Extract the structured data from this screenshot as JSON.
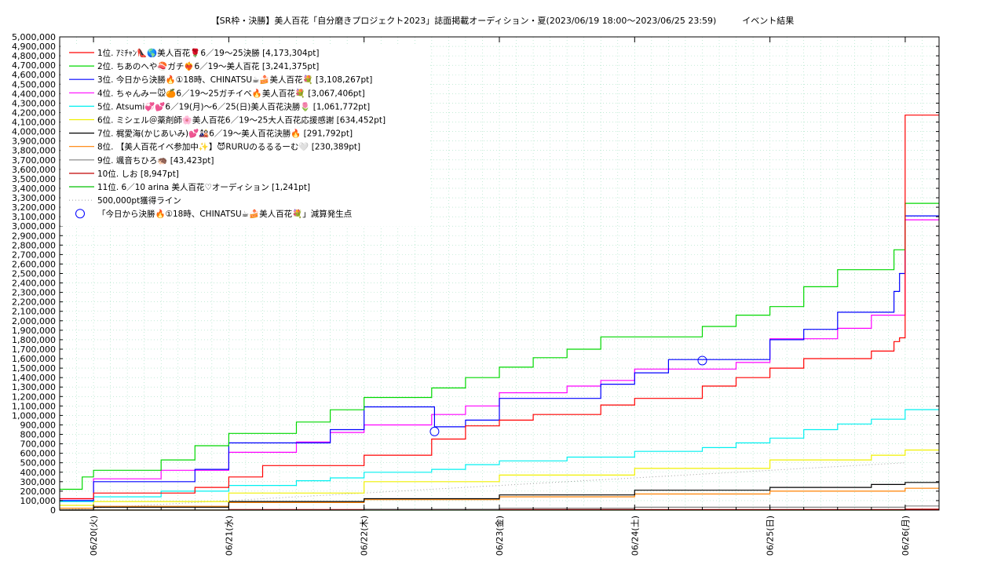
{
  "chart_data": {
    "type": "line",
    "title": "【SR枠・決勝】美人百花「自分磨きプロジェクト2023」誌面掲載オーディション・夏(2023/06/19 18:00～2023/06/25 23:59)　　　イベント結果",
    "xlabel": "",
    "ylabel": "",
    "ylim": [
      0,
      5000000
    ],
    "y_tick_step": 100000,
    "x_start": "2023-06-19 18:00",
    "x_end": "2023-06-26 06:00",
    "x_tick_labels": [
      "06/20(火)",
      "06/21(水)",
      "06/22(木)",
      "06/23(金)",
      "06/24(土)",
      "06/25(日)",
      "06/26(月)"
    ],
    "x_tick_dates": [
      "2023-06-20 00:00",
      "2023-06-21 00:00",
      "2023-06-22 00:00",
      "2023-06-23 00:00",
      "2023-06-24 00:00",
      "2023-06-25 00:00",
      "2023-06-26 00:00"
    ],
    "grid": true,
    "legend_position": "top-left",
    "series": [
      {
        "name": "1位. ｱﾐﾁｬﾝ👠🌎美人百花🌹6／19〜25決勝 [4,173,304pt]",
        "color": "#ff0000",
        "final": 4173304,
        "points": [
          [
            "2023-06-19 18:00",
            120000
          ],
          [
            "2023-06-20 00:00",
            180000
          ],
          [
            "2023-06-20 12:00",
            180000
          ],
          [
            "2023-06-20 18:00",
            240000
          ],
          [
            "2023-06-21 00:00",
            350000
          ],
          [
            "2023-06-21 06:00",
            470000
          ],
          [
            "2023-06-21 18:00",
            470000
          ],
          [
            "2023-06-22 00:00",
            580000
          ],
          [
            "2023-06-22 12:00",
            750000
          ],
          [
            "2023-06-22 18:00",
            890000
          ],
          [
            "2023-06-23 00:00",
            950000
          ],
          [
            "2023-06-23 06:00",
            1010000
          ],
          [
            "2023-06-23 18:00",
            1110000
          ],
          [
            "2023-06-24 00:00",
            1180000
          ],
          [
            "2023-06-24 12:00",
            1310000
          ],
          [
            "2023-06-24 18:00",
            1400000
          ],
          [
            "2023-06-25 00:00",
            1500000
          ],
          [
            "2023-06-25 06:00",
            1600000
          ],
          [
            "2023-06-25 18:00",
            1680000
          ],
          [
            "2023-06-25 22:00",
            1780000
          ],
          [
            "2023-06-25 23:00",
            1820000
          ],
          [
            "2023-06-25 23:59",
            4173304
          ],
          [
            "2023-06-26 06:00",
            4173304
          ]
        ]
      },
      {
        "name": "2位. ちあのへや🍣ガチ❤️‍🔥6／19〜美人百花 [3,241,375pt]",
        "color": "#00d800",
        "final": 3241375,
        "points": [
          [
            "2023-06-19 18:00",
            220000
          ],
          [
            "2023-06-19 22:00",
            350000
          ],
          [
            "2023-06-20 00:00",
            420000
          ],
          [
            "2023-06-20 12:00",
            530000
          ],
          [
            "2023-06-20 18:00",
            680000
          ],
          [
            "2023-06-21 00:00",
            810000
          ],
          [
            "2023-06-21 12:00",
            930000
          ],
          [
            "2023-06-21 18:00",
            1060000
          ],
          [
            "2023-06-22 00:00",
            1190000
          ],
          [
            "2023-06-22 12:00",
            1290000
          ],
          [
            "2023-06-22 18:00",
            1400000
          ],
          [
            "2023-06-23 00:00",
            1510000
          ],
          [
            "2023-06-23 06:00",
            1610000
          ],
          [
            "2023-06-23 12:00",
            1700000
          ],
          [
            "2023-06-23 18:00",
            1830000
          ],
          [
            "2023-06-24 12:00",
            1940000
          ],
          [
            "2023-06-24 18:00",
            2060000
          ],
          [
            "2023-06-25 00:00",
            2150000
          ],
          [
            "2023-06-25 06:00",
            2360000
          ],
          [
            "2023-06-25 12:00",
            2540000
          ],
          [
            "2023-06-25 22:00",
            2750000
          ],
          [
            "2023-06-25 23:59",
            3241375
          ],
          [
            "2023-06-26 06:00",
            3241375
          ]
        ]
      },
      {
        "name": "3位. 今日から決勝🔥①18時、CHINATSU☕🍰美人百花💐 [3,108,267pt]",
        "color": "#0000ff",
        "final": 3108267,
        "points": [
          [
            "2023-06-19 18:00",
            100000
          ],
          [
            "2023-06-20 00:00",
            300000
          ],
          [
            "2023-06-20 18:00",
            430000
          ],
          [
            "2023-06-21 00:00",
            710000
          ],
          [
            "2023-06-21 18:00",
            850000
          ],
          [
            "2023-06-22 00:00",
            1090000
          ],
          [
            "2023-06-22 12:00",
            1090000
          ],
          [
            "2023-06-22 12:30",
            880000
          ],
          [
            "2023-06-22 18:00",
            950000
          ],
          [
            "2023-06-23 00:00",
            1180000
          ],
          [
            "2023-06-23 18:00",
            1330000
          ],
          [
            "2023-06-24 00:00",
            1450000
          ],
          [
            "2023-06-24 06:00",
            1590000
          ],
          [
            "2023-06-24 18:00",
            1590000
          ],
          [
            "2023-06-25 00:00",
            1800000
          ],
          [
            "2023-06-25 06:00",
            1910000
          ],
          [
            "2023-06-25 12:00",
            2090000
          ],
          [
            "2023-06-25 22:00",
            2310000
          ],
          [
            "2023-06-25 23:00",
            2500000
          ],
          [
            "2023-06-25 23:59",
            3108267
          ],
          [
            "2023-06-26 06:00",
            3108267
          ]
        ]
      },
      {
        "name": "4位. ちゃんみー🐭🍊6／19〜25ガチイベ🔥美人百花💐 [3,067,406pt]",
        "color": "#ff00ff",
        "final": 3067406,
        "points": [
          [
            "2023-06-19 18:00",
            120000
          ],
          [
            "2023-06-20 00:00",
            330000
          ],
          [
            "2023-06-20 12:00",
            420000
          ],
          [
            "2023-06-21 00:00",
            610000
          ],
          [
            "2023-06-21 12:00",
            720000
          ],
          [
            "2023-06-21 18:00",
            820000
          ],
          [
            "2023-06-22 00:00",
            900000
          ],
          [
            "2023-06-22 12:00",
            1010000
          ],
          [
            "2023-06-22 18:00",
            1100000
          ],
          [
            "2023-06-23 00:00",
            1240000
          ],
          [
            "2023-06-23 12:00",
            1310000
          ],
          [
            "2023-06-23 18:00",
            1370000
          ],
          [
            "2023-06-24 00:00",
            1490000
          ],
          [
            "2023-06-24 18:00",
            1560000
          ],
          [
            "2023-06-25 00:00",
            1810000
          ],
          [
            "2023-06-25 12:00",
            1920000
          ],
          [
            "2023-06-25 18:00",
            2060000
          ],
          [
            "2023-06-25 23:59",
            3067406
          ],
          [
            "2023-06-26 06:00",
            3067406
          ]
        ]
      },
      {
        "name": "5位. Atsumi💞💕6／19(月)〜6／25(日)美人百花決勝🌷 [1,061,772pt]",
        "color": "#00f0f0",
        "final": 1061772,
        "points": [
          [
            "2023-06-19 18:00",
            90000
          ],
          [
            "2023-06-20 00:00",
            140000
          ],
          [
            "2023-06-20 12:00",
            200000
          ],
          [
            "2023-06-21 00:00",
            260000
          ],
          [
            "2023-06-21 12:00",
            310000
          ],
          [
            "2023-06-21 18:00",
            340000
          ],
          [
            "2023-06-22 00:00",
            400000
          ],
          [
            "2023-06-22 12:00",
            430000
          ],
          [
            "2023-06-22 18:00",
            480000
          ],
          [
            "2023-06-23 00:00",
            520000
          ],
          [
            "2023-06-23 12:00",
            560000
          ],
          [
            "2023-06-24 00:00",
            620000
          ],
          [
            "2023-06-24 12:00",
            660000
          ],
          [
            "2023-06-24 18:00",
            710000
          ],
          [
            "2023-06-25 00:00",
            760000
          ],
          [
            "2023-06-25 06:00",
            850000
          ],
          [
            "2023-06-25 12:00",
            910000
          ],
          [
            "2023-06-25 18:00",
            960000
          ],
          [
            "2023-06-25 23:59",
            1061772
          ],
          [
            "2023-06-26 06:00",
            1061772
          ]
        ]
      },
      {
        "name": "6位. ミシェル＠薬剤師🌸美人百花6／19〜25大人百花応援感謝 [634,452pt]",
        "color": "#f0f000",
        "final": 634452,
        "points": [
          [
            "2023-06-19 18:00",
            50000
          ],
          [
            "2023-06-20 00:00",
            90000
          ],
          [
            "2023-06-21 00:00",
            180000
          ],
          [
            "2023-06-22 00:00",
            300000
          ],
          [
            "2023-06-23 00:00",
            370000
          ],
          [
            "2023-06-24 00:00",
            440000
          ],
          [
            "2023-06-25 00:00",
            530000
          ],
          [
            "2023-06-25 18:00",
            580000
          ],
          [
            "2023-06-25 23:59",
            634452
          ],
          [
            "2023-06-26 06:00",
            634452
          ]
        ]
      },
      {
        "name": "7位. 梶愛海(かじあいみ)💕🎎6／19〜美人百花決勝🔥 [291,792pt]",
        "color": "#000000",
        "final": 291792,
        "points": [
          [
            "2023-06-19 18:00",
            0
          ],
          [
            "2023-06-20 00:00",
            30000
          ],
          [
            "2023-06-21 00:00",
            90000
          ],
          [
            "2023-06-22 00:00",
            120000
          ],
          [
            "2023-06-23 00:00",
            160000
          ],
          [
            "2023-06-24 00:00",
            210000
          ],
          [
            "2023-06-25 00:00",
            240000
          ],
          [
            "2023-06-25 18:00",
            270000
          ],
          [
            "2023-06-25 23:59",
            291792
          ],
          [
            "2023-06-26 06:00",
            291792
          ]
        ]
      },
      {
        "name": "8位. 【美人百花イベ参加中✨】😈RURUのるるるーむ🤍 [230,389pt]",
        "color": "#ff8000",
        "final": 230389,
        "points": [
          [
            "2023-06-19 18:00",
            20000
          ],
          [
            "2023-06-20 00:00",
            40000
          ],
          [
            "2023-06-21 00:00",
            80000
          ],
          [
            "2023-06-22 00:00",
            110000
          ],
          [
            "2023-06-23 00:00",
            140000
          ],
          [
            "2023-06-24 00:00",
            170000
          ],
          [
            "2023-06-25 00:00",
            200000
          ],
          [
            "2023-06-25 23:59",
            230389
          ],
          [
            "2023-06-26 06:00",
            230389
          ]
        ]
      },
      {
        "name": "9位. 颯音ちひろ🦔 [43,423pt]",
        "color": "#808080",
        "final": 43423,
        "points": [
          [
            "2023-06-19 18:00",
            0
          ],
          [
            "2023-06-22 00:00",
            10000
          ],
          [
            "2023-06-23 00:00",
            20000
          ],
          [
            "2023-06-24 00:00",
            30000
          ],
          [
            "2023-06-25 23:59",
            43423
          ],
          [
            "2023-06-26 06:00",
            43423
          ]
        ]
      },
      {
        "name": "10位. しお [8,947pt]",
        "color": "#c00000",
        "final": 8947,
        "points": [
          [
            "2023-06-19 18:00",
            0
          ],
          [
            "2023-06-21 00:00",
            5000
          ],
          [
            "2023-06-25 23:59",
            8947
          ],
          [
            "2023-06-26 06:00",
            8947
          ]
        ]
      },
      {
        "name": "11位. 6／10 arina 美人百花♡オーディション [1,241pt]",
        "color": "#00c000",
        "final": 1241,
        "points": [
          [
            "2023-06-19 18:00",
            0
          ],
          [
            "2023-06-25 23:59",
            1241
          ],
          [
            "2023-06-26 06:00",
            1241
          ]
        ]
      }
    ],
    "reference_line": {
      "name": "500,000pt獲得ライン",
      "color": "#a0a0a0",
      "points": [
        [
          "2023-06-19 18:00",
          0
        ],
        [
          "2023-06-26 00:00",
          500000
        ]
      ]
    },
    "markers": {
      "name": "「今日から決勝🔥①18時、CHINATSU☕🍰美人百花💐」減算発生点",
      "color": "#0000ff",
      "points": [
        [
          "2023-06-22 12:30",
          830000
        ],
        [
          "2023-06-24 12:00",
          1580000
        ]
      ]
    }
  }
}
